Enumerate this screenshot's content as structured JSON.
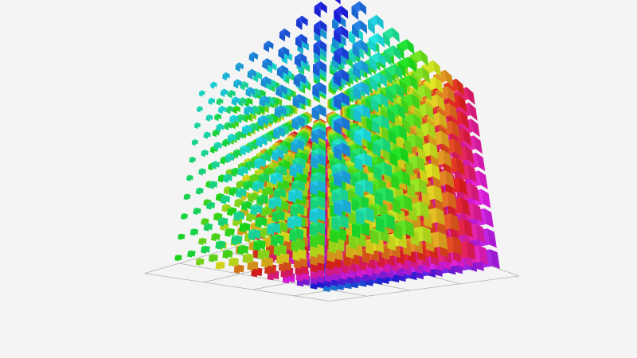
{
  "chart_data": {
    "type": "scatter3d",
    "mark": "cube",
    "title": "",
    "xlabel": "",
    "ylabel": "",
    "zlabel": "",
    "grid": true,
    "legend": "none",
    "color_encoding": "hue-gradient",
    "background": "#f4f4f4",
    "grid_color": "#b0b0b0"
  }
}
